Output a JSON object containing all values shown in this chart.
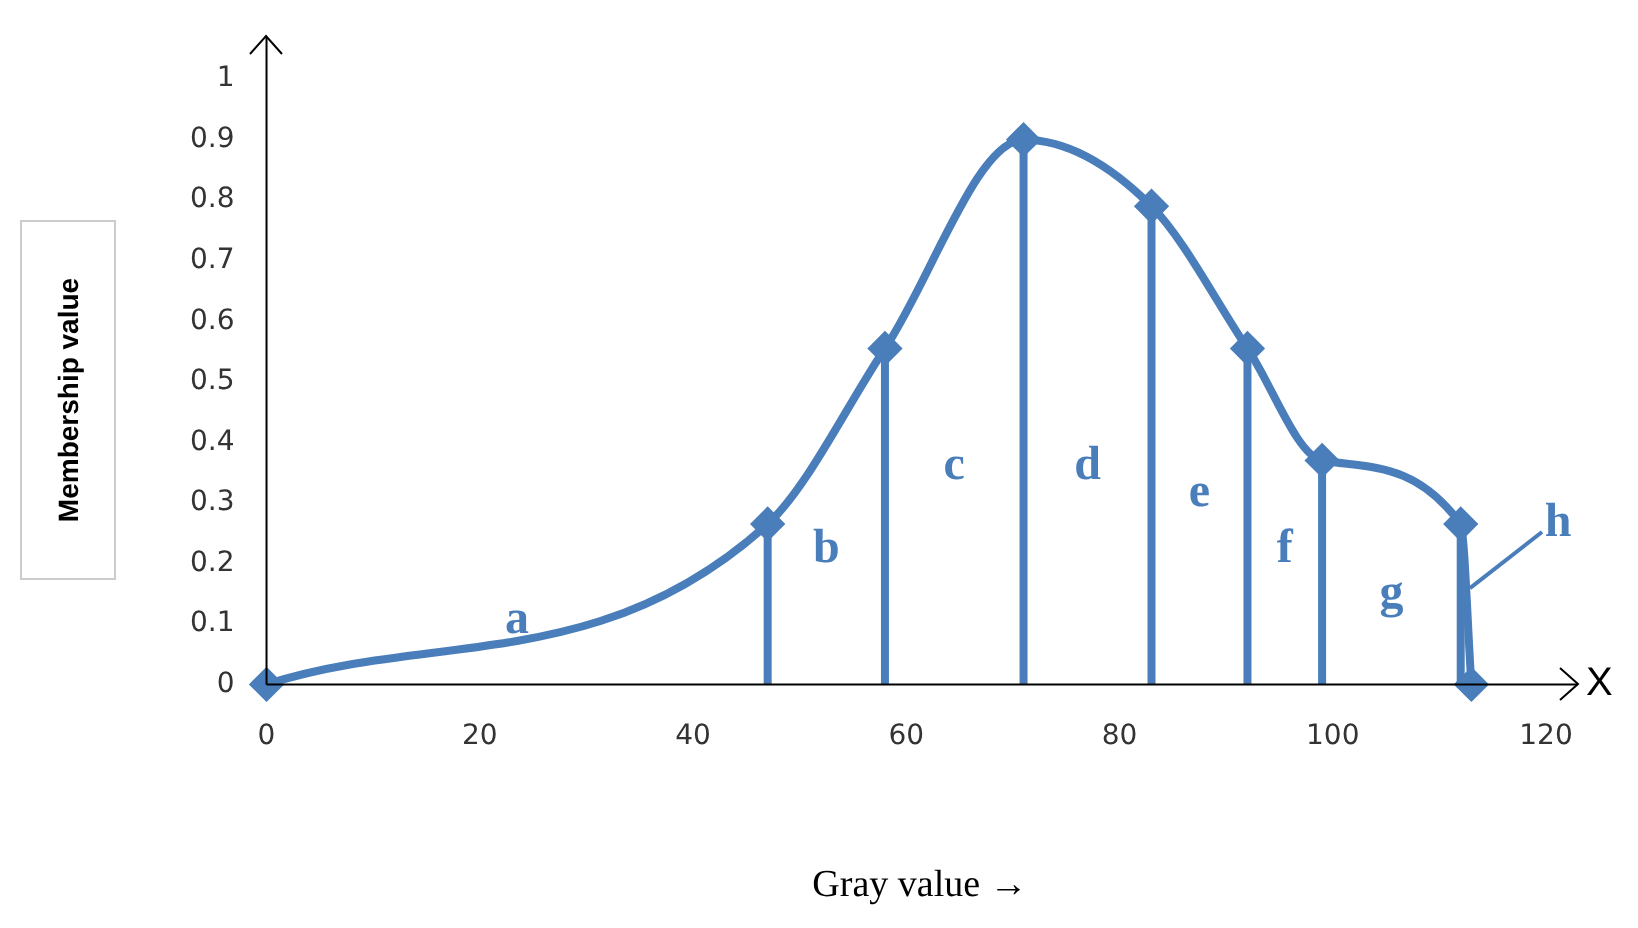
{
  "chart_data": {
    "type": "line",
    "xlabel": "Gray value →",
    "ylabel": "Membership value",
    "x": [
      0,
      47,
      58,
      71,
      83,
      92,
      99,
      112,
      113
    ],
    "series": [
      {
        "color": "#4a7ebb",
        "values": [
          0,
          0.265,
          0.555,
          0.9,
          0.79,
          0.555,
          0.37,
          0.265,
          0
        ]
      },
      {
        "type": "lollipop",
        "color": "#4a7ebb",
        "values": [
          null,
          0.265,
          0.555,
          0.9,
          0.79,
          0.555,
          0.37,
          0.265,
          null
        ]
      }
    ],
    "xlim": [
      0,
      123
    ],
    "xticks": [
      0,
      20,
      40,
      60,
      80,
      100,
      120
    ],
    "ylim": [
      0,
      1.07
    ],
    "yticks": [
      0,
      0.1,
      0.2,
      0.3,
      0.4,
      0.5,
      0.6,
      0.7,
      0.8,
      0.9,
      1
    ],
    "grid": false,
    "legend": false,
    "marker": "diamond",
    "line_style": "solid",
    "annotations": [
      "a",
      "b",
      "c",
      "d",
      "e",
      "f",
      "g",
      "h",
      "X"
    ]
  }
}
